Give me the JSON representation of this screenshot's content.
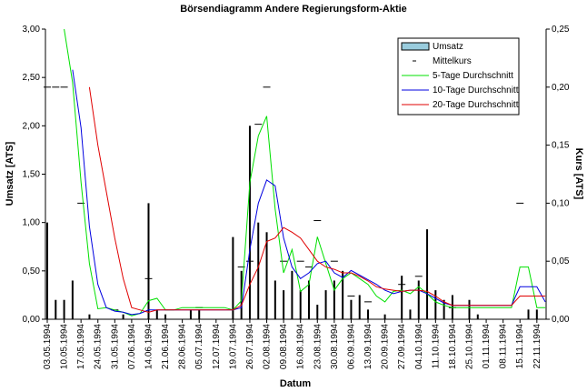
{
  "chart_data": {
    "type": "stock",
    "title": "Börsendiagramm Andere Regierungsform-Aktie",
    "x_label": "Datum",
    "y_label": "Umsatz [ATS]",
    "y2_label": "Kurs [ATS]",
    "legend": "upper right",
    "categories": [
      "03.05.1994",
      null,
      "10.05.1994",
      null,
      "17.05.1994",
      null,
      "24.05.1994",
      null,
      "31.05.1994",
      null,
      "07.06.1994",
      null,
      "14.06.1994",
      null,
      "21.06.1994",
      null,
      "28.06.1994",
      null,
      "05.07.1994",
      null,
      "12.07.1994",
      null,
      "19.07.1994",
      null,
      "26.07.1994",
      null,
      "02.08.1994",
      null,
      "09.08.1994",
      null,
      "16.08.1994",
      null,
      "23.08.1994",
      null,
      "30.08.1994",
      null,
      "06.09.1994",
      null,
      "13.09.1994",
      null,
      "20.09.1994",
      null,
      "27.09.1994",
      null,
      "04.10.1994",
      null,
      "11.10.1994",
      null,
      "18.10.1994",
      null,
      "25.10.1994",
      null,
      "01.11.1994",
      null,
      "08.11.1994",
      null,
      "15.11.1994",
      null,
      "22.11.1994",
      null
    ],
    "ylim": [
      0,
      3
    ],
    "yticks": [
      {
        "value": 0,
        "label": "0,00"
      },
      {
        "value": 0.5,
        "label": "0,50"
      },
      {
        "value": 1,
        "label": "1,00"
      },
      {
        "value": 1.5,
        "label": "1,50"
      },
      {
        "value": 2,
        "label": "2,00"
      },
      {
        "value": 2.5,
        "label": "2,50"
      },
      {
        "value": 3,
        "label": "3,00"
      }
    ],
    "y2lim": [
      0,
      0.25
    ],
    "y2ticks": [
      {
        "value": 0,
        "label": "0,00"
      },
      {
        "value": 0.05,
        "label": "0,05"
      },
      {
        "value": 0.1,
        "label": "0,10"
      },
      {
        "value": 0.15,
        "label": "0,15"
      },
      {
        "value": 0.2,
        "label": "0,20"
      },
      {
        "value": 0.25,
        "label": "0,25"
      }
    ],
    "series": [
      {
        "name": "Umsatz",
        "kind": "bar",
        "color": "#000000",
        "values": [
          1.0,
          0.2,
          0.2,
          0.4,
          0,
          0.05,
          0,
          0,
          0,
          0.05,
          0,
          0,
          1.2,
          0.1,
          0.05,
          0,
          0,
          0.1,
          0.1,
          0,
          0,
          0,
          0.85,
          0.5,
          2.0,
          1.0,
          0.9,
          0.4,
          0.3,
          0.5,
          0.3,
          0.4,
          0.15,
          0.3,
          0.4,
          0.5,
          0.2,
          0.25,
          0.1,
          0,
          0.05,
          0,
          0.45,
          0.1,
          0.4,
          0.93,
          0.3,
          0.2,
          0.25,
          0,
          0.2,
          0.05,
          0,
          0,
          0,
          0,
          0,
          0.1,
          0.1,
          0
        ]
      },
      {
        "name": "Mittelkurs",
        "kind": "marker",
        "axis": "y2",
        "color": "#000000",
        "values": [
          0.2,
          0.2,
          0.2,
          null,
          0.1,
          null,
          null,
          null,
          0.008,
          null,
          null,
          null,
          0.035,
          null,
          null,
          null,
          null,
          null,
          0.01,
          null,
          null,
          null,
          null,
          0.045,
          0.05,
          0.168,
          0.2,
          null,
          0.05,
          null,
          0.05,
          0.045,
          0.085,
          null,
          0.05,
          null,
          0.02,
          null,
          0.015,
          null,
          null,
          null,
          0.03,
          null,
          0.037,
          null,
          null,
          null,
          0.01,
          null,
          null,
          null,
          null,
          null,
          null,
          null,
          0.1,
          null,
          null,
          null
        ]
      },
      {
        "name": "5-Tage Durchschnitt",
        "kind": "line",
        "axis": "y2",
        "color": "#00e000",
        "values": [
          null,
          null,
          0.25,
          0.204,
          0.118,
          0.048,
          0.009,
          0.01,
          0.008,
          0.006,
          0.003,
          0.005,
          0.016,
          0.018,
          0.008,
          0.008,
          0.01,
          0.01,
          0.01,
          0.01,
          0.01,
          0.01,
          0.008,
          0.016,
          0.118,
          0.158,
          0.175,
          0.095,
          0.04,
          0.06,
          0.024,
          0.03,
          0.071,
          0.048,
          0.025,
          0.035,
          0.04,
          0.035,
          0.03,
          0.02,
          0.015,
          0.024,
          0.025,
          0.022,
          0.028,
          0.022,
          0.015,
          0.012,
          0.01,
          0.01,
          0.01,
          0.01,
          0.01,
          0.01,
          0.01,
          0.01,
          0.045,
          0.045,
          0.01,
          0.01
        ]
      },
      {
        "name": "10-Tage Durchschnitt",
        "kind": "line",
        "axis": "y2",
        "color": "#0000e0",
        "values": [
          null,
          null,
          null,
          0.215,
          0.165,
          0.08,
          0.03,
          0.01,
          0.007,
          0.006,
          0.004,
          0.005,
          0.008,
          0.008,
          0.008,
          0.008,
          0.008,
          0.008,
          0.008,
          0.008,
          0.008,
          0.008,
          0.008,
          0.01,
          0.06,
          0.1,
          0.12,
          0.115,
          0.07,
          0.045,
          0.035,
          0.04,
          0.048,
          0.05,
          0.04,
          0.036,
          0.042,
          0.038,
          0.034,
          0.03,
          0.025,
          0.022,
          0.024,
          0.025,
          0.025,
          0.022,
          0.018,
          0.014,
          0.012,
          0.012,
          0.012,
          0.012,
          0.012,
          0.012,
          0.012,
          0.012,
          0.028,
          0.028,
          0.028,
          0.015
        ]
      },
      {
        "name": "20-Tage Durchschnitt",
        "kind": "line",
        "axis": "y2",
        "color": "#e00000",
        "values": [
          null,
          null,
          null,
          null,
          null,
          0.2,
          0.15,
          0.11,
          0.07,
          0.035,
          0.01,
          0.008,
          0.006,
          0.008,
          0.008,
          0.008,
          0.008,
          0.008,
          0.008,
          0.008,
          0.008,
          0.008,
          0.008,
          0.012,
          0.03,
          0.045,
          0.067,
          0.07,
          0.079,
          0.075,
          0.07,
          0.06,
          0.05,
          0.045,
          0.043,
          0.04,
          0.04,
          0.037,
          0.033,
          0.028,
          0.026,
          0.025,
          0.024,
          0.025,
          0.025,
          0.024,
          0.02,
          0.015,
          0.012,
          0.012,
          0.012,
          0.012,
          0.012,
          0.012,
          0.012,
          0.012,
          0.02,
          0.02,
          0.02,
          0.02
        ]
      }
    ]
  }
}
